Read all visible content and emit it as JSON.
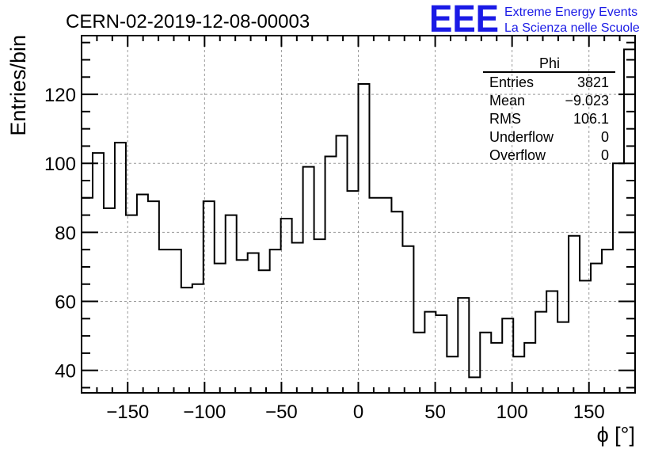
{
  "colors": {
    "axis": "#000000",
    "grid": "#9a9a9a",
    "histogram": "#000000",
    "brand": "#1a1ae6"
  },
  "branding": {
    "logo_text": "EEE",
    "line1": "Extreme Energy Events",
    "line2": "La Scienza nelle Scuole"
  },
  "stats": {
    "title": "Phi",
    "rows": [
      {
        "label": "Entries",
        "value": "3821"
      },
      {
        "label": "Mean",
        "value": "−9.023"
      },
      {
        "label": "RMS",
        "value": "106.1"
      },
      {
        "label": "Underflow",
        "value": "0"
      },
      {
        "label": "Overflow",
        "value": "0"
      }
    ]
  },
  "chart_data": {
    "type": "histogram",
    "title": "CERN-02-2019-12-08-00003",
    "xlabel": "ϕ [°]",
    "ylabel": "Entries/bin",
    "xlim": [
      -180,
      180
    ],
    "ylim": [
      33.5,
      137
    ],
    "bin_width": 7.2,
    "xticks": [
      -150,
      -100,
      -50,
      0,
      50,
      100,
      150
    ],
    "xtick_labels": [
      "−150",
      "−100",
      "−50",
      "0",
      "50",
      "100",
      "150"
    ],
    "yticks": [
      40,
      60,
      80,
      100,
      120
    ],
    "ytick_labels": [
      "40",
      "60",
      "80",
      "100",
      "120"
    ],
    "grid": true,
    "values": [
      90,
      103,
      87,
      106,
      85,
      91,
      89,
      75,
      75,
      64,
      65,
      89,
      71,
      85,
      72,
      74,
      69,
      75,
      84,
      77,
      99,
      78,
      102,
      108,
      92,
      123,
      90,
      90,
      86,
      76,
      51,
      57,
      56,
      44,
      61,
      38,
      51,
      48,
      55,
      44,
      48,
      57,
      63,
      54,
      79,
      66,
      71,
      75,
      100,
      133
    ]
  }
}
